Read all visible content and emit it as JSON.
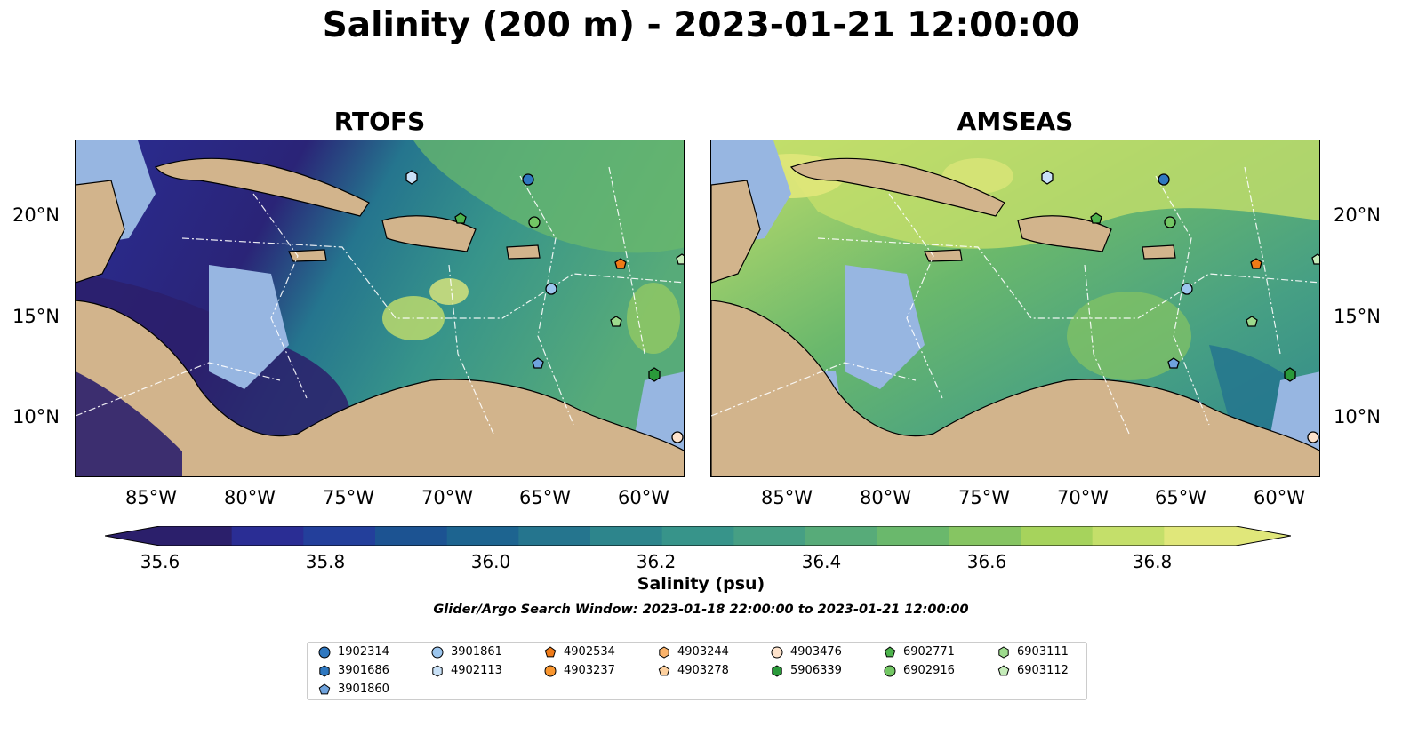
{
  "title": "Salinity (200 m) - 2023-01-21 12:00:00",
  "panels": [
    {
      "title": "RTOFS"
    },
    {
      "title": "AMSEAS"
    }
  ],
  "lon_ticks": [
    "85°W",
    "80°W",
    "75°W",
    "70°W",
    "65°W",
    "60°W"
  ],
  "lat_ticks": [
    "20°N",
    "15°N",
    "10°N"
  ],
  "colorbar": {
    "label": "Salinity (psu)",
    "ticks": [
      "35.6",
      "35.8",
      "36.0",
      "36.2",
      "36.4",
      "36.6",
      "36.8"
    ],
    "colors": [
      "#2b1f6b",
      "#2a2d94",
      "#233f9b",
      "#1c5392",
      "#1d6490",
      "#25758e",
      "#2d858c",
      "#37948a",
      "#469f84",
      "#57ab79",
      "#6ab86c",
      "#86c562",
      "#a6d35c",
      "#c4df6a",
      "#e0e77a"
    ],
    "extend": "both"
  },
  "search_window": "Glider/Argo Search Window: 2023-01-18 22:00:00 to 2023-01-21 12:00:00",
  "legend": {
    "items": [
      {
        "id": "1902314",
        "color": "#2f78c0",
        "marker": "circle"
      },
      {
        "id": "3901686",
        "color": "#2f78c0",
        "marker": "hexagon"
      },
      {
        "id": "3901860",
        "color": "#6fa3dd",
        "marker": "pentagon"
      },
      {
        "id": "3901861",
        "color": "#9cc6ee",
        "marker": "circle"
      },
      {
        "id": "4902113",
        "color": "#c9e1f7",
        "marker": "hexagon"
      },
      {
        "id": "4902534",
        "color": "#ef7a17",
        "marker": "pentagon"
      },
      {
        "id": "4903237",
        "color": "#f9962f",
        "marker": "circle"
      },
      {
        "id": "4903244",
        "color": "#fbb36a",
        "marker": "hexagon"
      },
      {
        "id": "4903278",
        "color": "#fdd09e",
        "marker": "pentagon"
      },
      {
        "id": "4903476",
        "color": "#fde2cb",
        "marker": "circle"
      },
      {
        "id": "5906339",
        "color": "#2a9a3a",
        "marker": "hexagon"
      },
      {
        "id": "6902771",
        "color": "#4db34c",
        "marker": "pentagon"
      },
      {
        "id": "6902916",
        "color": "#73c764",
        "marker": "circle"
      },
      {
        "id": "6903111",
        "color": "#9ddb8d",
        "marker": "hexagon"
      },
      {
        "id": "6903112",
        "color": "#c5ecb9",
        "marker": "pentagon"
      }
    ]
  },
  "colors": {
    "land": "#d2b48c",
    "shallow": "#97b6e1"
  }
}
